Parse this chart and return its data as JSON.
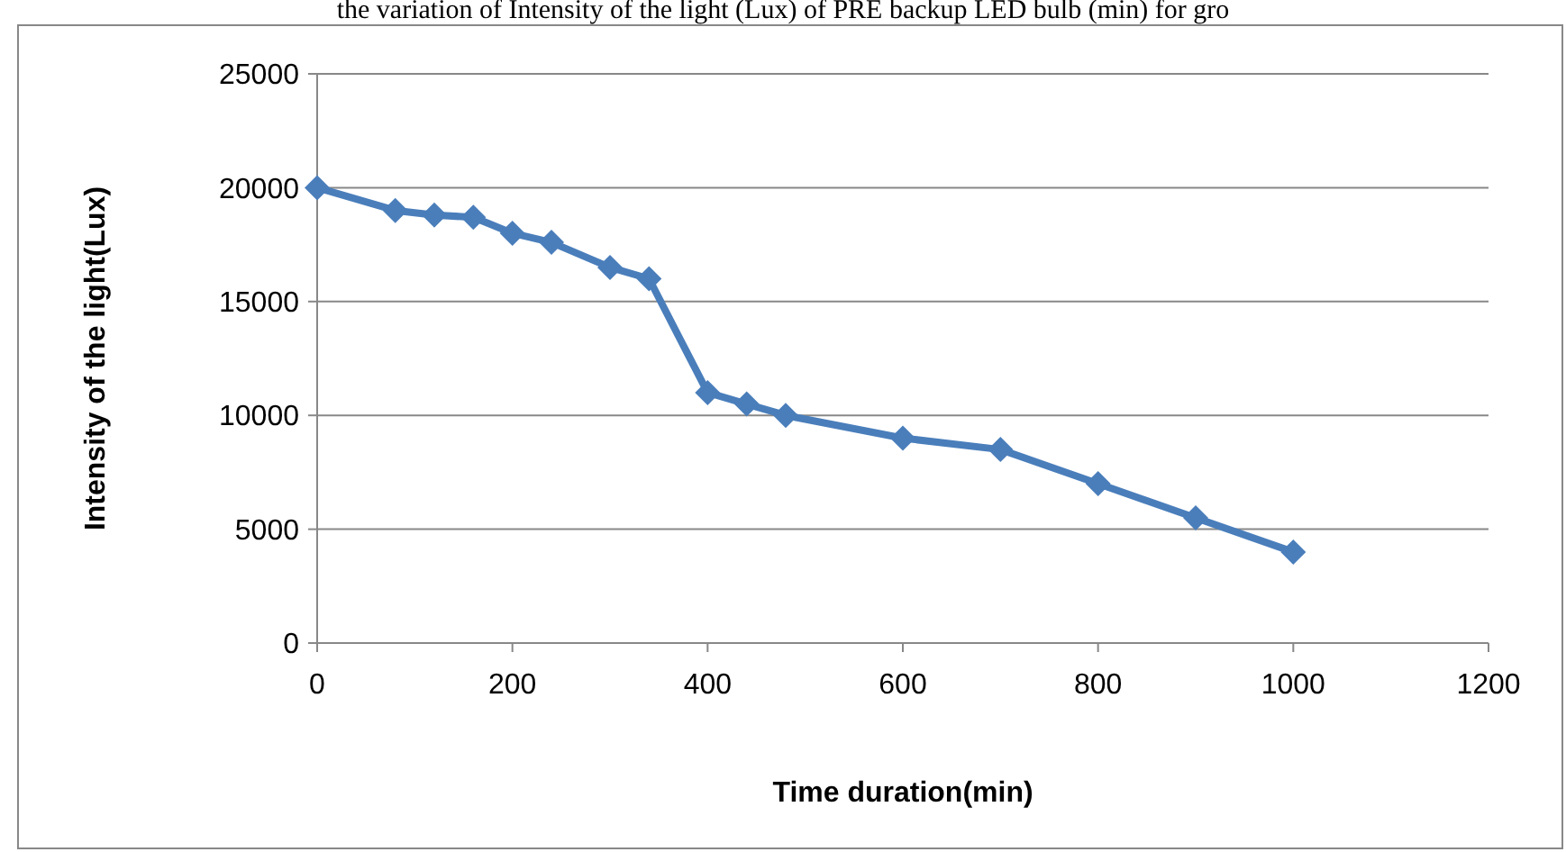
{
  "chart_data": {
    "type": "line",
    "title": "the variation of Intensity of the light (Lux) of PRE backup LED bulb (min) for gro",
    "xlabel": "Time duration(min)",
    "ylabel": "Intensity of the light(Lux)",
    "x": [
      0,
      80,
      120,
      160,
      200,
      240,
      300,
      340,
      400,
      440,
      480,
      600,
      700,
      800,
      900,
      1000
    ],
    "series": [
      {
        "color": "#4a7ebb",
        "values": [
          20000,
          19000,
          18800,
          18700,
          18000,
          17600,
          16500,
          16000,
          11000,
          10500,
          10000,
          9000,
          8500,
          7000,
          5500,
          4000
        ]
      }
    ],
    "xlim": [
      0,
      1200
    ],
    "xticks": [
      0,
      200,
      400,
      600,
      800,
      1000,
      1200
    ],
    "ylim": [
      0,
      25000
    ],
    "yticks": [
      0,
      5000,
      10000,
      15000,
      20000,
      25000
    ],
    "grid": "y",
    "marker": "diamond",
    "line_style": "solid"
  }
}
